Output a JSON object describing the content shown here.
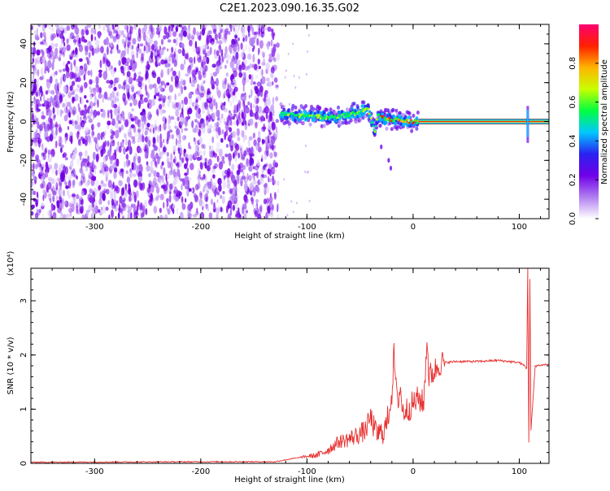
{
  "title": "C2E1.2023.090.16.35.G02",
  "chart_data": [
    {
      "type": "heatmap",
      "title": "C2E1.2023.090.16.35.G02",
      "xlabel": "Height of straight line (km)",
      "ylabel": "Frequency (Hz)",
      "xlim": [
        -360,
        128
      ],
      "ylim": [
        -50,
        50
      ],
      "xticks": [
        -300,
        -200,
        -100,
        0,
        100
      ],
      "yticks": [
        -40,
        -20,
        0,
        20,
        40
      ],
      "noise_region_x": [
        -360,
        -127
      ],
      "signal": {
        "track": [
          [
            -125,
            4
          ],
          [
            -110,
            3
          ],
          [
            -95,
            3
          ],
          [
            -80,
            2
          ],
          [
            -65,
            3
          ],
          [
            -50,
            5
          ],
          [
            -43,
            7
          ],
          [
            -40,
            2
          ],
          [
            -36,
            -5
          ],
          [
            -33,
            3
          ],
          [
            -25,
            1
          ],
          [
            -15,
            1
          ],
          [
            -5,
            0
          ],
          [
            5,
            0
          ],
          [
            20,
            0
          ],
          [
            60,
            0
          ],
          [
            100,
            0
          ],
          [
            128,
            0
          ]
        ],
        "constant_band_x": [
          5,
          128
        ],
        "spike_x": 108,
        "stray_points": [
          [
            -30,
            -13
          ],
          [
            -23,
            -20
          ],
          [
            -21,
            -24
          ]
        ]
      },
      "colorbar": {
        "label": "Normalized spectral amplitude",
        "range": [
          0.0,
          1.0
        ],
        "ticks": [
          "0.0",
          "0.2",
          "0.4",
          "0.6",
          "0.8"
        ],
        "gradient": [
          "#ffffff",
          "#b07ef0",
          "#7000e8",
          "#2a22f0",
          "#00c8ff",
          "#00ff40",
          "#c8ff00",
          "#ffb400",
          "#ff2000",
          "#ff0070"
        ]
      }
    },
    {
      "type": "line",
      "xlabel": "Height of straight line (km)",
      "ylabel": "SNR (10 * v/v)",
      "multiplier": "(x10⁴)",
      "xlim": [
        -360,
        128
      ],
      "ylim": [
        0,
        3.6
      ],
      "xticks": [
        -300,
        -200,
        -100,
        0,
        100
      ],
      "yticks": [
        0,
        1,
        2,
        3
      ],
      "color": "#e83030",
      "series": [
        {
          "x": [
            -360,
            -200,
            -130,
            -110,
            -100,
            -90,
            -80,
            -70,
            -60,
            -50,
            -45,
            -40,
            -35,
            -30,
            -25,
            -20,
            -18,
            -15,
            -12,
            -10,
            -5,
            0,
            5,
            10,
            13,
            15,
            20,
            25,
            30,
            40,
            60,
            80,
            100,
            105,
            107,
            108,
            109,
            110,
            111,
            115,
            128
          ],
          "y": [
            0.02,
            0.03,
            0.03,
            0.1,
            0.13,
            0.15,
            0.25,
            0.4,
            0.45,
            0.55,
            0.6,
            0.85,
            0.55,
            0.55,
            0.7,
            1.3,
            2.0,
            1.1,
            1.4,
            0.95,
            1.0,
            1.1,
            1.2,
            1.1,
            2.3,
            1.6,
            1.7,
            1.85,
            1.86,
            1.88,
            1.88,
            1.9,
            1.86,
            1.8,
            1.75,
            3.6,
            0.4,
            3.4,
            0.6,
            1.8,
            1.83
          ]
        }
      ]
    }
  ]
}
